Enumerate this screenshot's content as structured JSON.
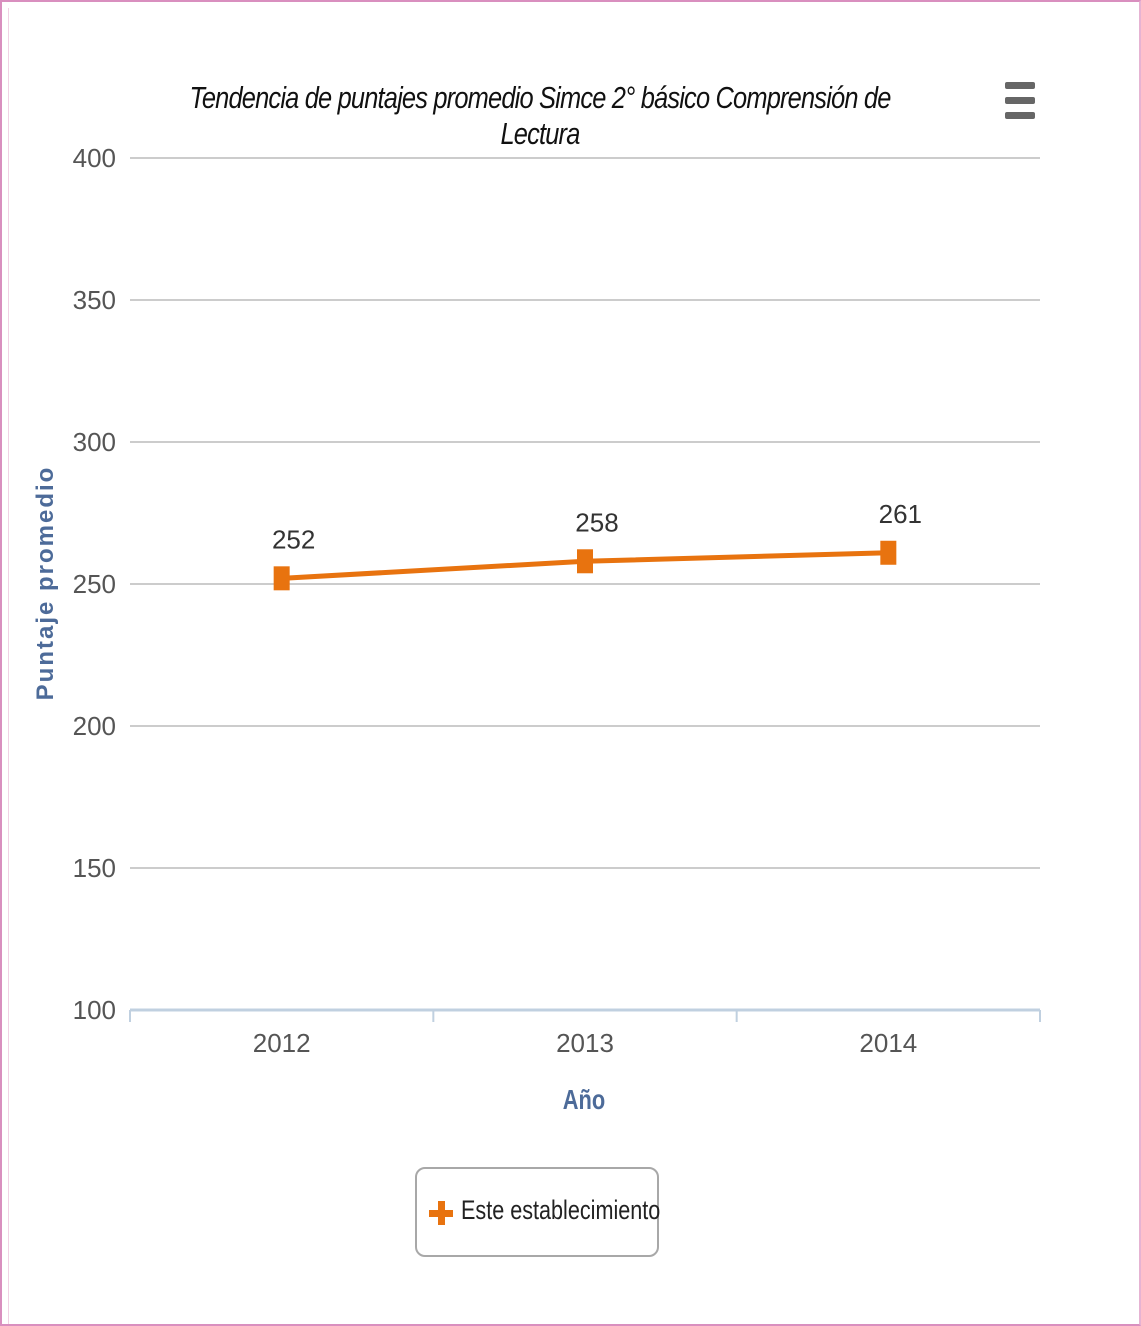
{
  "chart_data": {
    "type": "line",
    "title": "Tendencia de puntajes promedio Simce 2° básico Comprensión de Lectura",
    "xlabel": "Año",
    "ylabel": "Puntaje promedio",
    "categories": [
      "2012",
      "2013",
      "2014"
    ],
    "series": [
      {
        "name": "Este establecimiento",
        "values": [
          252,
          258,
          261
        ],
        "color": "#e8730f"
      }
    ],
    "ylim": [
      100,
      400
    ],
    "yticks": [
      100,
      150,
      200,
      250,
      300,
      350,
      400
    ],
    "grid": true,
    "data_labels": true,
    "legend": "bottom-center"
  },
  "menu": {
    "icon": "hamburger-menu-icon"
  },
  "colors": {
    "series": "#e8730f",
    "grid": "#cccccc",
    "axis": "#c0d0e0",
    "axis_title": "#4d6b99",
    "frame": "#d98fbf"
  }
}
